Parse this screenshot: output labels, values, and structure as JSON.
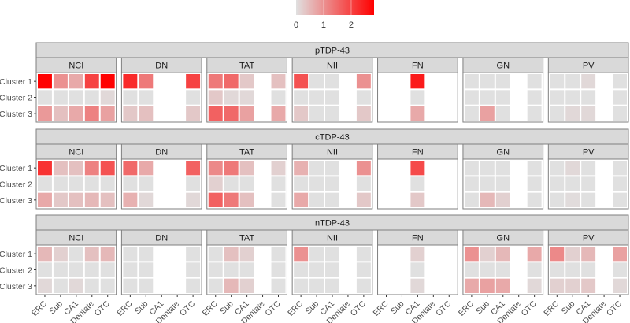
{
  "chart_data": {
    "type": "heatmap",
    "title": "",
    "xlabel": "",
    "ylabel": "",
    "legend": {
      "position": "top",
      "ticks": [
        "0",
        "1",
        "2"
      ],
      "range": [
        0,
        2.83
      ],
      "low_color": "#e0e0e0",
      "high_color": "#ff0000"
    },
    "regions": [
      "ERC",
      "Sub",
      "CA1",
      "Dentate",
      "OTC"
    ],
    "clusters": [
      "Cluster 1",
      "Cluster 2",
      "Cluster 3"
    ],
    "pathology_types": [
      "NCI",
      "DN",
      "TAT",
      "NII",
      "FN",
      "GN",
      "PV"
    ],
    "stains": [
      {
        "name": "pTDP-43",
        "panels": [
          {
            "type": "NCI",
            "values": [
              [
                2.8,
                1.0,
                0.7,
                2.0,
                2.8
              ],
              [
                0.0,
                0.0,
                0.0,
                0.0,
                0.1
              ],
              [
                0.9,
                0.4,
                0.7,
                1.2,
                0.8
              ]
            ]
          },
          {
            "type": "DN",
            "values": [
              [
                2.3,
                1.3,
                null,
                null,
                2.0
              ],
              [
                0.0,
                0.0,
                null,
                null,
                0.0
              ],
              [
                0.3,
                0.4,
                null,
                null,
                0.3
              ]
            ]
          },
          {
            "type": "TAT",
            "values": [
              [
                1.3,
                1.5,
                0.3,
                null,
                0.4
              ],
              [
                0.3,
                0.1,
                0.1,
                null,
                0.0
              ],
              [
                1.6,
                1.5,
                0.8,
                null,
                0.7
              ]
            ]
          },
          {
            "type": "NII",
            "values": [
              [
                1.8,
                0.0,
                0.0,
                null,
                1.0
              ],
              [
                0.0,
                0.0,
                0.0,
                null,
                0.0
              ],
              [
                0.3,
                0.0,
                0.0,
                null,
                0.3
              ]
            ]
          },
          {
            "type": "FN",
            "values": [
              [
                null,
                null,
                2.5,
                null,
                null
              ],
              [
                null,
                null,
                0.0,
                null,
                null
              ],
              [
                null,
                null,
                0.7,
                null,
                null
              ]
            ]
          },
          {
            "type": "GN",
            "values": [
              [
                0.0,
                0.0,
                0.0,
                null,
                0.0
              ],
              [
                0.0,
                0.0,
                0.0,
                null,
                0.0
              ],
              [
                0.0,
                0.8,
                0.0,
                null,
                0.0
              ]
            ]
          },
          {
            "type": "PV",
            "values": [
              [
                0.0,
                0.0,
                0.1,
                null,
                0.0
              ],
              [
                0.0,
                0.0,
                0.0,
                null,
                0.0
              ],
              [
                0.0,
                0.1,
                0.1,
                null,
                0.0
              ]
            ]
          }
        ]
      },
      {
        "name": "cTDP-43",
        "panels": [
          {
            "type": "NCI",
            "values": [
              [
                2.2,
                0.4,
                0.4,
                1.2,
                1.8
              ],
              [
                0.0,
                0.0,
                0.0,
                0.0,
                0.0
              ],
              [
                0.7,
                0.3,
                0.4,
                0.5,
                0.4
              ]
            ]
          },
          {
            "type": "DN",
            "values": [
              [
                1.5,
                0.7,
                null,
                null,
                1.6
              ],
              [
                0.0,
                0.0,
                null,
                null,
                0.0
              ],
              [
                0.6,
                0.1,
                null,
                null,
                0.1
              ]
            ]
          },
          {
            "type": "TAT",
            "values": [
              [
                1.1,
                1.3,
                0.4,
                null,
                0.2
              ],
              [
                0.2,
                0.0,
                0.0,
                null,
                0.0
              ],
              [
                1.6,
                1.3,
                0.4,
                null,
                0.0
              ]
            ]
          },
          {
            "type": "NII",
            "values": [
              [
                0.6,
                0.0,
                0.0,
                null,
                1.0
              ],
              [
                0.0,
                0.0,
                0.0,
                null,
                0.0
              ],
              [
                0.7,
                0.0,
                0.0,
                null,
                0.3
              ]
            ]
          },
          {
            "type": "FN",
            "values": [
              [
                null,
                null,
                1.9,
                null,
                null
              ],
              [
                null,
                null,
                0.0,
                null,
                null
              ],
              [
                null,
                null,
                0.3,
                null,
                null
              ]
            ]
          },
          {
            "type": "GN",
            "values": [
              [
                0.0,
                0.0,
                0.0,
                null,
                0.0
              ],
              [
                0.0,
                0.0,
                0.0,
                null,
                0.0
              ],
              [
                0.0,
                0.5,
                0.2,
                null,
                0.0
              ]
            ]
          },
          {
            "type": "PV",
            "values": [
              [
                0.0,
                0.1,
                0.0,
                null,
                0.0
              ],
              [
                0.0,
                0.0,
                0.0,
                null,
                0.0
              ],
              [
                0.0,
                0.05,
                0.0,
                null,
                0.0
              ]
            ]
          }
        ]
      },
      {
        "name": "nTDP-43",
        "panels": [
          {
            "type": "NCI",
            "values": [
              [
                0.5,
                0.2,
                0.0,
                0.4,
                0.5
              ],
              [
                0.0,
                0.0,
                0.0,
                0.0,
                0.0
              ],
              [
                0.1,
                0.0,
                0.1,
                0.0,
                0.0
              ]
            ]
          },
          {
            "type": "DN",
            "values": [
              [
                0.0,
                0.0,
                null,
                null,
                0.0
              ],
              [
                0.0,
                0.0,
                null,
                null,
                0.0
              ],
              [
                0.0,
                0.0,
                null,
                null,
                0.0
              ]
            ]
          },
          {
            "type": "TAT",
            "values": [
              [
                0.0,
                0.4,
                0.2,
                null,
                0.0
              ],
              [
                0.0,
                0.0,
                0.0,
                null,
                0.0
              ],
              [
                0.0,
                0.5,
                0.2,
                null,
                0.0
              ]
            ]
          },
          {
            "type": "NII",
            "values": [
              [
                1.0,
                0.0,
                0.0,
                null,
                0.0
              ],
              [
                0.0,
                0.0,
                0.0,
                null,
                0.0
              ],
              [
                0.0,
                0.0,
                0.0,
                null,
                0.0
              ]
            ]
          },
          {
            "type": "FN",
            "values": [
              [
                null,
                null,
                0.2,
                null,
                null
              ],
              [
                null,
                null,
                0.0,
                null,
                null
              ],
              [
                null,
                null,
                0.1,
                null,
                null
              ]
            ]
          },
          {
            "type": "GN",
            "values": [
              [
                1.0,
                0.2,
                0.5,
                null,
                0.7
              ],
              [
                0.0,
                0.0,
                0.0,
                null,
                0.0
              ],
              [
                0.7,
                0.8,
                0.7,
                null,
                0.1
              ]
            ]
          },
          {
            "type": "PV",
            "values": [
              [
                1.1,
                0.2,
                0.5,
                null,
                0.8
              ],
              [
                0.0,
                0.0,
                0.0,
                null,
                0.0
              ],
              [
                0.2,
                0.2,
                0.3,
                null,
                0.1
              ]
            ]
          }
        ]
      }
    ]
  }
}
